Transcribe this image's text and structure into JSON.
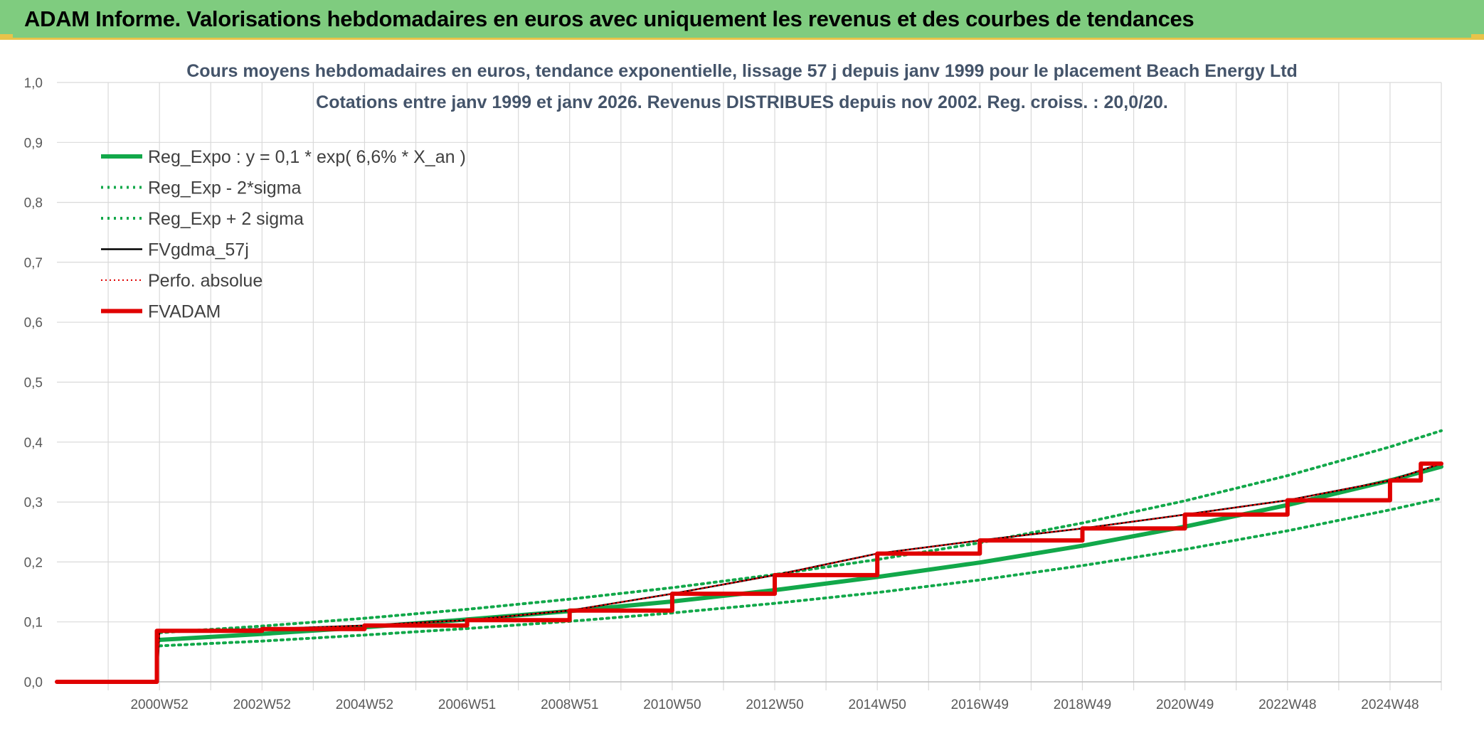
{
  "header": {
    "title": "ADAM Informe. Valorisations hebdomadaires en euros avec uniquement les revenus et des courbes de tendances"
  },
  "colors": {
    "banner": "#7fcc7f",
    "accent_border": "#e8c34a",
    "trend_green": "#12a84a",
    "fvgdma_black": "#000000",
    "fvadam_red": "#e00000",
    "grid": "#d9d9d9"
  },
  "chart_data": {
    "type": "line",
    "title": "Cours moyens hebdomadaires en euros, tendance exponentielle, lissage 57 j depuis janv 1999 pour le placement Beach Energy Ltd",
    "subtitle": "Cotations entre janv 1999 et janv 2026. Revenus DISTRIBUES depuis nov 2002. Reg. croiss. : 20,0/20.",
    "xlabel": "",
    "ylabel": "",
    "ylim": [
      0,
      1
    ],
    "xlim": [
      1999.0,
      2026.0
    ],
    "y_ticks": [
      "0,0",
      "0,1",
      "0,2",
      "0,3",
      "0,4",
      "0,5",
      "0,6",
      "0,7",
      "0,8",
      "0,9",
      "1,0"
    ],
    "x_tick_labels": [
      "2000W52",
      "2002W52",
      "2004W52",
      "2006W51",
      "2008W51",
      "2010W50",
      "2012W50",
      "2014W50",
      "2016W49",
      "2018W49",
      "2020W49",
      "2022W48",
      "2024W48"
    ],
    "grid": true,
    "legend_position": "top-left",
    "series": [
      {
        "name": "Reg_Expo : y = 0,1 * exp( 6,6% *  X_an )",
        "style": "solid-thick",
        "color": "#12a84a",
        "x": [
          2001.0,
          2003.0,
          2005.0,
          2007.0,
          2009.0,
          2011.0,
          2013.0,
          2015.0,
          2017.0,
          2019.0,
          2021.0,
          2023.0,
          2025.0,
          2026.0
        ],
        "y": [
          0.07,
          0.08,
          0.091,
          0.104,
          0.118,
          0.134,
          0.153,
          0.175,
          0.199,
          0.227,
          0.259,
          0.295,
          0.336,
          0.359
        ]
      },
      {
        "name": "Reg_Exp - 2*sigma",
        "style": "dotted",
        "color": "#12a84a",
        "x": [
          2001.0,
          2003.0,
          2005.0,
          2007.0,
          2009.0,
          2011.0,
          2013.0,
          2015.0,
          2017.0,
          2019.0,
          2021.0,
          2023.0,
          2025.0,
          2026.0
        ],
        "y": [
          0.06,
          0.068,
          0.078,
          0.089,
          0.101,
          0.115,
          0.131,
          0.149,
          0.17,
          0.194,
          0.221,
          0.252,
          0.287,
          0.306
        ]
      },
      {
        "name": "Reg_Exp + 2 sigma",
        "style": "dotted",
        "color": "#12a84a",
        "x": [
          2001.0,
          2003.0,
          2005.0,
          2007.0,
          2009.0,
          2011.0,
          2013.0,
          2015.0,
          2017.0,
          2019.0,
          2021.0,
          2023.0,
          2025.0,
          2026.0
        ],
        "y": [
          0.082,
          0.093,
          0.106,
          0.121,
          0.138,
          0.157,
          0.179,
          0.204,
          0.232,
          0.265,
          0.302,
          0.344,
          0.392,
          0.419
        ]
      },
      {
        "name": "FVgdma_57j",
        "style": "solid-thin",
        "color": "#000000",
        "x": [
          1999.0,
          2000.95,
          2001.0,
          2003.0,
          2005.0,
          2007.0,
          2009.0,
          2011.0,
          2013.0,
          2015.0,
          2017.0,
          2019.0,
          2021.0,
          2023.0,
          2025.0,
          2026.0
        ],
        "y": [
          0.0,
          0.0,
          0.085,
          0.088,
          0.094,
          0.103,
          0.119,
          0.147,
          0.178,
          0.214,
          0.236,
          0.256,
          0.279,
          0.303,
          0.336,
          0.364
        ]
      },
      {
        "name": "Perfo. absolue",
        "style": "dotted-thin",
        "color": "#e00000",
        "x": [
          1999.0,
          2000.95,
          2001.0,
          2003.0,
          2005.0,
          2007.0,
          2009.0,
          2011.0,
          2013.0,
          2015.0,
          2017.0,
          2019.0,
          2021.0,
          2023.0,
          2025.0,
          2026.0
        ],
        "y": [
          0.0,
          0.0,
          0.085,
          0.088,
          0.094,
          0.103,
          0.119,
          0.147,
          0.178,
          0.214,
          0.236,
          0.256,
          0.279,
          0.303,
          0.336,
          0.364
        ]
      },
      {
        "name": "FVADAM",
        "style": "solid-thick",
        "color": "#e00000",
        "x": [
          1999.0,
          2000.95,
          2000.95,
          2003.0,
          2003.0,
          2005.0,
          2005.0,
          2007.0,
          2007.0,
          2009.0,
          2009.0,
          2011.0,
          2011.0,
          2013.0,
          2013.0,
          2015.0,
          2015.0,
          2017.0,
          2017.0,
          2019.0,
          2019.0,
          2021.0,
          2021.0,
          2023.0,
          2023.0,
          2025.0,
          2025.0,
          2025.6,
          2025.6,
          2026.0
        ],
        "y": [
          0.0,
          0.0,
          0.085,
          0.085,
          0.088,
          0.088,
          0.094,
          0.094,
          0.103,
          0.103,
          0.119,
          0.119,
          0.147,
          0.147,
          0.178,
          0.178,
          0.214,
          0.214,
          0.236,
          0.236,
          0.256,
          0.256,
          0.279,
          0.279,
          0.303,
          0.303,
          0.336,
          0.336,
          0.364,
          0.364
        ]
      }
    ]
  }
}
